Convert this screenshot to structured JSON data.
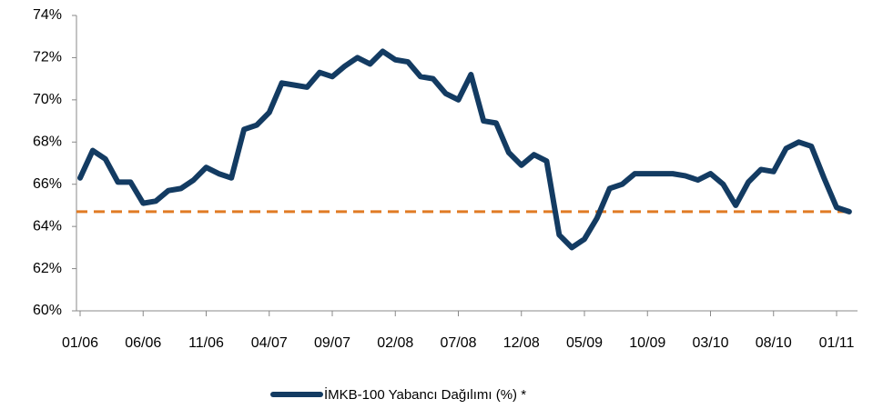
{
  "chart_data": {
    "type": "line",
    "categories": [
      "01/06",
      null,
      null,
      null,
      null,
      "06/06",
      null,
      null,
      null,
      null,
      "11/06",
      null,
      null,
      null,
      null,
      "04/07",
      null,
      null,
      null,
      null,
      "09/07",
      null,
      null,
      null,
      null,
      "02/08",
      null,
      null,
      null,
      null,
      "07/08",
      null,
      null,
      null,
      null,
      "12/08",
      null,
      null,
      null,
      null,
      "05/09",
      null,
      null,
      null,
      null,
      "10/09",
      null,
      null,
      null,
      null,
      "03/10",
      null,
      null,
      null,
      null,
      "08/10",
      null,
      null,
      null,
      null,
      "01/11",
      null
    ],
    "series": [
      {
        "name": "İMKB-100 Yabancı Dağılımı (%) *",
        "color": "#133b62",
        "values": [
          66.3,
          67.6,
          67.2,
          66.1,
          66.1,
          65.1,
          65.2,
          65.7,
          65.8,
          66.2,
          66.8,
          66.5,
          66.3,
          68.6,
          68.8,
          69.4,
          70.8,
          70.7,
          70.6,
          71.3,
          71.1,
          71.6,
          72.0,
          71.7,
          72.3,
          71.9,
          71.8,
          71.1,
          71.0,
          70.3,
          70.0,
          71.2,
          69.0,
          68.9,
          67.5,
          66.9,
          67.4,
          67.1,
          63.6,
          63.0,
          63.4,
          64.4,
          65.8,
          66.0,
          66.5,
          66.5,
          66.5,
          66.5,
          66.4,
          66.2,
          66.5,
          66.0,
          65.0,
          66.1,
          66.7,
          66.6,
          67.7,
          68.0,
          67.8,
          66.3,
          64.9,
          64.7
        ]
      }
    ],
    "reference_line": {
      "value": 64.7,
      "color": "#e07b24"
    },
    "ylim": [
      60,
      74
    ],
    "yticks": [
      {
        "value": 60,
        "label": "60%"
      },
      {
        "value": 62,
        "label": "62%"
      },
      {
        "value": 64,
        "label": "64%"
      },
      {
        "value": 66,
        "label": "66%"
      },
      {
        "value": 68,
        "label": "68%"
      },
      {
        "value": 70,
        "label": "70%"
      },
      {
        "value": 72,
        "label": "72%"
      },
      {
        "value": 74,
        "label": "74%"
      }
    ],
    "grid": false,
    "legend": "bottom"
  }
}
